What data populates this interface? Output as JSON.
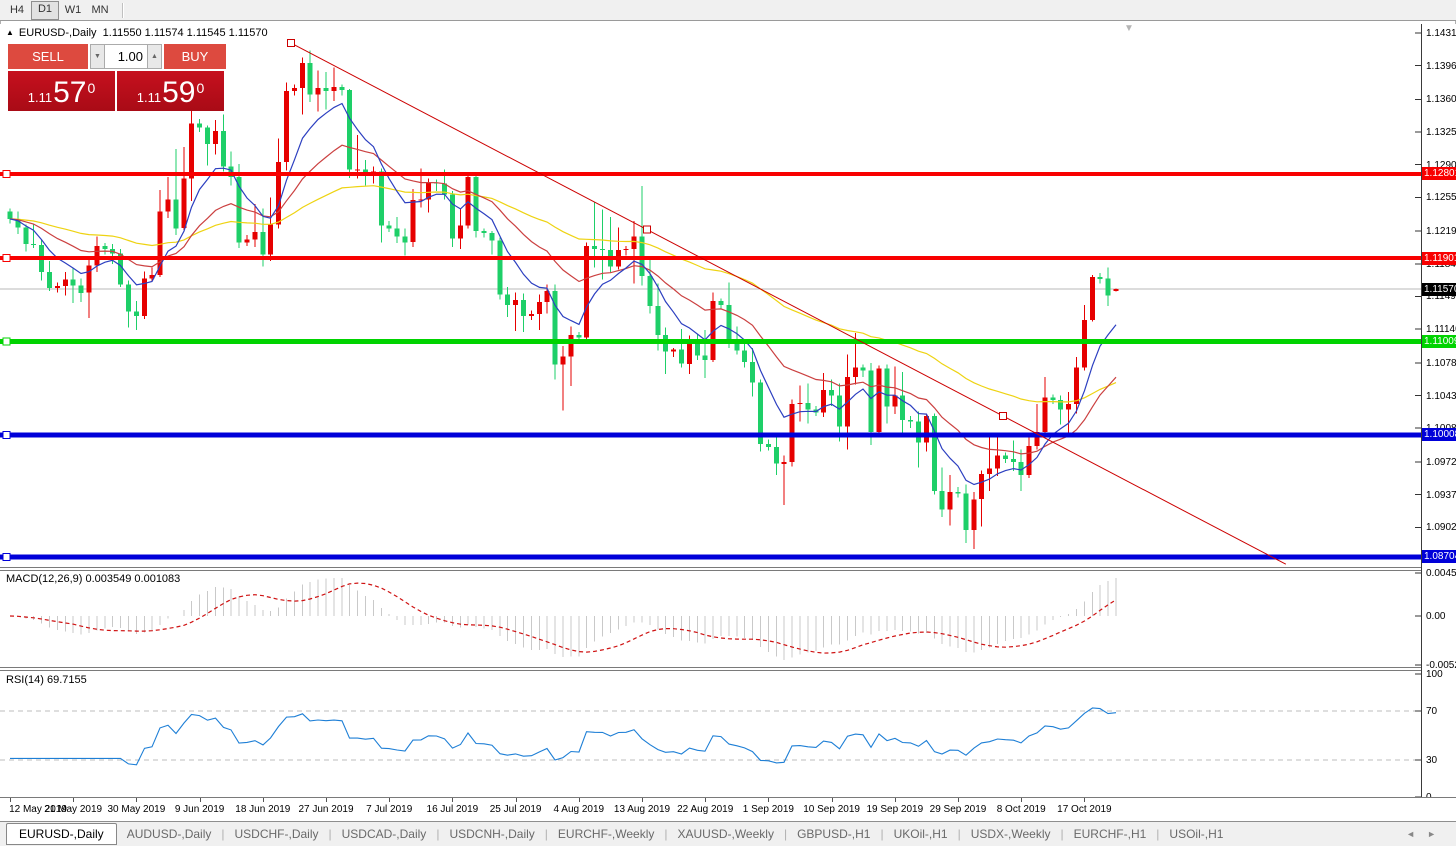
{
  "toolbar": {
    "timeframes": [
      {
        "label": "H4",
        "active": false
      },
      {
        "label": "D1",
        "active": true
      },
      {
        "label": "W1",
        "active": false
      },
      {
        "label": "MN",
        "active": false
      }
    ]
  },
  "chart": {
    "title_symbol": "EURUSD-,Daily",
    "title_ohlc": "1.11550 1.11574 1.11545 1.11570",
    "trade_panel": {
      "sell_label": "SELL",
      "buy_label": "BUY",
      "volume": "1.00",
      "bid_prefix": "1.11",
      "bid_big": "57",
      "bid_sup": "0",
      "ask_prefix": "1.11",
      "ask_big": "59",
      "ask_sup": "0"
    }
  },
  "chart_data": {
    "type": "candlestick",
    "symbol": "EURUSD",
    "timeframe": "Daily",
    "price_axis_range": [
      1.08595,
      1.14406
    ],
    "grid": false,
    "colors": {
      "bull": "#e60000",
      "bear": "#1ecf68",
      "ma_fast": "#2c3fc0",
      "ma_mid": "#cb4040",
      "ma_slow": "#eed312",
      "trendline": "#cc0000",
      "current_line": "#b8b8b8"
    },
    "y_ticks": [
      "1.14310",
      "1.13960",
      "1.13600",
      "1.13250",
      "1.12900",
      "1.12550",
      "1.12190",
      "1.11840",
      "1.11490",
      "1.11140",
      "1.10780",
      "1.10430",
      "1.10080",
      "1.09720",
      "1.09370",
      "1.09020"
    ],
    "current_price": {
      "label": "1.11570",
      "price": 1.1157
    },
    "horizontal_levels": [
      {
        "price": 1.12801,
        "label": "1.12801",
        "color": "#f80000",
        "thickness": 4
      },
      {
        "price": 1.11901,
        "label": "1.11901",
        "color": "#f80000",
        "thickness": 4
      },
      {
        "price": 1.11009,
        "label": "1.11009",
        "color": "#00d300",
        "thickness": 5
      },
      {
        "price": 1.10008,
        "label": "1.10008",
        "color": "#0000d9",
        "thickness": 5
      },
      {
        "price": 1.08704,
        "label": "1.08704",
        "color": "#0000d9",
        "thickness": 5
      }
    ],
    "trendline": {
      "start": {
        "bar": 35.6,
        "price": 1.142
      },
      "end": {
        "bar": 125.7,
        "price": 1.1021
      },
      "ray_end_bar": 161.5,
      "color": "#cc0000"
    },
    "moving_averages": [
      {
        "period": 8,
        "color": "#2c3fc0"
      },
      {
        "period": 21,
        "color": "#cb4040"
      },
      {
        "period": 55,
        "color": "#eed312"
      }
    ],
    "indicators": {
      "macd": {
        "label": "MACD(12,26,9) 0.003549 0.001083",
        "params": [
          12,
          26,
          9
        ],
        "value": 0.003549,
        "signal_value": 0.001083,
        "histogram_color": "#c9c9c9",
        "signal_color": "#cf1212",
        "axis_ticks": [
          {
            "label": "0.004536",
            "value": 0.004536
          },
          {
            "label": "0.00",
            "value": 0
          },
          {
            "label": "-0.005206",
            "value": -0.005206
          }
        ]
      },
      "rsi": {
        "label": "RSI(14) 69.7155",
        "period": 14,
        "value": 69.7155,
        "levels": [
          70,
          30
        ],
        "line_color": "#1e7fd6",
        "axis_ticks": [
          {
            "label": "100",
            "value": 100
          },
          {
            "label": "70",
            "value": 70
          },
          {
            "label": "30",
            "value": 30
          },
          {
            "label": "0",
            "value": 0
          }
        ]
      }
    },
    "x_labels": [
      {
        "bar": 0,
        "label": "12 May 2019"
      },
      {
        "bar": 8,
        "label": "21 May 2019"
      },
      {
        "bar": 16,
        "label": "30 May 2019"
      },
      {
        "bar": 24,
        "label": "9 Jun 2019"
      },
      {
        "bar": 32,
        "label": "18 Jun 2019"
      },
      {
        "bar": 40,
        "label": "27 Jun 2019"
      },
      {
        "bar": 48,
        "label": "7 Jul 2019"
      },
      {
        "bar": 56,
        "label": "16 Jul 2019"
      },
      {
        "bar": 64,
        "label": "25 Jul 2019"
      },
      {
        "bar": 72,
        "label": "4 Aug 2019"
      },
      {
        "bar": 80,
        "label": "13 Aug 2019"
      },
      {
        "bar": 88,
        "label": "22 Aug 2019"
      },
      {
        "bar": 96,
        "label": "1 Sep 2019"
      },
      {
        "bar": 104,
        "label": "10 Sep 2019"
      },
      {
        "bar": 112,
        "label": "19 Sep 2019"
      },
      {
        "bar": 120,
        "label": "29 Sep 2019"
      },
      {
        "bar": 128,
        "label": "8 Oct 2019"
      },
      {
        "bar": 136,
        "label": "17 Oct 2019"
      }
    ],
    "candles": [
      [
        1.124,
        1.1243,
        1.1227,
        1.1232
      ],
      [
        1.1232,
        1.124,
        1.1216,
        1.1223
      ],
      [
        1.1223,
        1.1226,
        1.1197,
        1.1205
      ],
      [
        1.1205,
        1.1226,
        1.1201,
        1.1204
      ],
      [
        1.1204,
        1.121,
        1.1166,
        1.1175
      ],
      [
        1.1175,
        1.1187,
        1.1155,
        1.1158
      ],
      [
        1.1158,
        1.1164,
        1.1153,
        1.116
      ],
      [
        1.116,
        1.1175,
        1.115,
        1.1167
      ],
      [
        1.1167,
        1.118,
        1.1142,
        1.1161
      ],
      [
        1.1161,
        1.1168,
        1.1143,
        1.1153
      ],
      [
        1.1153,
        1.1188,
        1.1126,
        1.1182
      ],
      [
        1.1182,
        1.1213,
        1.1175,
        1.1203
      ],
      [
        1.1203,
        1.1206,
        1.1194,
        1.12
      ],
      [
        1.12,
        1.1205,
        1.1184,
        1.1195
      ],
      [
        1.1195,
        1.12,
        1.1159,
        1.1162
      ],
      [
        1.1162,
        1.1166,
        1.1116,
        1.1133
      ],
      [
        1.1133,
        1.1144,
        1.1113,
        1.1128
      ],
      [
        1.1128,
        1.1176,
        1.1125,
        1.1168
      ],
      [
        1.1168,
        1.118,
        1.1165,
        1.1172
      ],
      [
        1.1172,
        1.1263,
        1.117,
        1.124
      ],
      [
        1.124,
        1.1277,
        1.1233,
        1.1253
      ],
      [
        1.1253,
        1.1307,
        1.1215,
        1.1222
      ],
      [
        1.1222,
        1.1309,
        1.122,
        1.1275
      ],
      [
        1.1275,
        1.1348,
        1.1251,
        1.1334
      ],
      [
        1.1334,
        1.1339,
        1.1325,
        1.133
      ],
      [
        1.133,
        1.1332,
        1.1289,
        1.1312
      ],
      [
        1.1312,
        1.1338,
        1.1301,
        1.1326
      ],
      [
        1.1326,
        1.1344,
        1.1283,
        1.1288
      ],
      [
        1.1288,
        1.1304,
        1.1268,
        1.1277
      ],
      [
        1.1277,
        1.1291,
        1.1201,
        1.1207
      ],
      [
        1.1207,
        1.1215,
        1.1203,
        1.121
      ],
      [
        1.121,
        1.1248,
        1.1202,
        1.1218
      ],
      [
        1.1218,
        1.1243,
        1.1181,
        1.1194
      ],
      [
        1.1194,
        1.1255,
        1.1187,
        1.1226
      ],
      [
        1.1226,
        1.1318,
        1.1222,
        1.1293
      ],
      [
        1.1293,
        1.1378,
        1.1284,
        1.1369
      ],
      [
        1.1369,
        1.1376,
        1.1364,
        1.1372
      ],
      [
        1.1372,
        1.1405,
        1.1344,
        1.1399
      ],
      [
        1.1399,
        1.1412,
        1.1357,
        1.1365
      ],
      [
        1.1365,
        1.1391,
        1.1347,
        1.1372
      ],
      [
        1.1372,
        1.1389,
        1.1349,
        1.1369
      ],
      [
        1.1369,
        1.1394,
        1.1358,
        1.1373
      ],
      [
        1.1373,
        1.1376,
        1.1364,
        1.137
      ],
      [
        1.137,
        1.1371,
        1.1276,
        1.1285
      ],
      [
        1.1285,
        1.1322,
        1.1275,
        1.1285
      ],
      [
        1.1285,
        1.1295,
        1.1268,
        1.1279
      ],
      [
        1.1279,
        1.1288,
        1.127,
        1.1283
      ],
      [
        1.1283,
        1.1286,
        1.1207,
        1.1225
      ],
      [
        1.1225,
        1.123,
        1.1218,
        1.1222
      ],
      [
        1.1222,
        1.1234,
        1.1206,
        1.1213
      ],
      [
        1.1213,
        1.1222,
        1.1193,
        1.1207
      ],
      [
        1.1207,
        1.1264,
        1.1202,
        1.1252
      ],
      [
        1.1252,
        1.1286,
        1.1244,
        1.1253
      ],
      [
        1.1253,
        1.1275,
        1.1239,
        1.1271
      ],
      [
        1.1271,
        1.1274,
        1.1262,
        1.127
      ],
      [
        1.127,
        1.1285,
        1.1253,
        1.1258
      ],
      [
        1.1258,
        1.1262,
        1.1202,
        1.1211
      ],
      [
        1.1211,
        1.1243,
        1.12,
        1.1225
      ],
      [
        1.1225,
        1.1282,
        1.1222,
        1.1277
      ],
      [
        1.1277,
        1.1282,
        1.1212,
        1.1219
      ],
      [
        1.1219,
        1.1222,
        1.1212,
        1.1217
      ],
      [
        1.1217,
        1.1219,
        1.1194,
        1.1209
      ],
      [
        1.1209,
        1.1212,
        1.1146,
        1.1151
      ],
      [
        1.1151,
        1.1159,
        1.1127,
        1.114
      ],
      [
        1.114,
        1.1153,
        1.1112,
        1.1145
      ],
      [
        1.1145,
        1.1152,
        1.1111,
        1.1128
      ],
      [
        1.1128,
        1.1134,
        1.1124,
        1.113
      ],
      [
        1.113,
        1.1151,
        1.1113,
        1.1143
      ],
      [
        1.1143,
        1.1162,
        1.1131,
        1.1155
      ],
      [
        1.1155,
        1.1162,
        1.106,
        1.1076
      ],
      [
        1.1076,
        1.1096,
        1.1027,
        1.1085
      ],
      [
        1.1085,
        1.1117,
        1.1053,
        1.1108
      ],
      [
        1.1108,
        1.1111,
        1.1101,
        1.1105
      ],
      [
        1.1105,
        1.1207,
        1.1103,
        1.1203
      ],
      [
        1.1203,
        1.125,
        1.118,
        1.12
      ],
      [
        1.12,
        1.1242,
        1.1167,
        1.1199
      ],
      [
        1.1199,
        1.1234,
        1.1174,
        1.1181
      ],
      [
        1.1181,
        1.1223,
        1.1178,
        1.1199
      ],
      [
        1.1199,
        1.1203,
        1.1193,
        1.12
      ],
      [
        1.12,
        1.123,
        1.1163,
        1.1213
      ],
      [
        1.1213,
        1.1267,
        1.1161,
        1.1171
      ],
      [
        1.1171,
        1.1191,
        1.1131,
        1.1139
      ],
      [
        1.1139,
        1.1163,
        1.1091,
        1.1108
      ],
      [
        1.1108,
        1.1116,
        1.1066,
        1.109
      ],
      [
        1.109,
        1.1094,
        1.1084,
        1.1092
      ],
      [
        1.1092,
        1.1114,
        1.1073,
        1.1077
      ],
      [
        1.1077,
        1.1107,
        1.1066,
        1.1099
      ],
      [
        1.1099,
        1.1109,
        1.1081,
        1.1086
      ],
      [
        1.1086,
        1.1113,
        1.1062,
        1.1081
      ],
      [
        1.1081,
        1.1153,
        1.1079,
        1.1144
      ],
      [
        1.1144,
        1.1147,
        1.1136,
        1.114
      ],
      [
        1.114,
        1.1164,
        1.1094,
        1.1101
      ],
      [
        1.1101,
        1.1117,
        1.1087,
        1.1091
      ],
      [
        1.1091,
        1.1098,
        1.1073,
        1.1079
      ],
      [
        1.1079,
        1.1094,
        1.1042,
        1.1057
      ],
      [
        1.1057,
        1.106,
        1.0983,
        1.0991
      ],
      [
        1.0991,
        1.0996,
        1.0984,
        1.0988
      ],
      [
        1.0988,
        1.0998,
        1.0958,
        1.097
      ],
      [
        1.097,
        1.0979,
        1.0926,
        1.0972
      ],
      [
        1.0972,
        1.1039,
        1.0967,
        1.1034
      ],
      [
        1.1034,
        1.1054,
        1.1015,
        1.1035
      ],
      [
        1.1035,
        1.1056,
        1.1013,
        1.1028
      ],
      [
        1.1028,
        1.1032,
        1.1021,
        1.1025
      ],
      [
        1.1025,
        1.1067,
        1.102,
        1.1049
      ],
      [
        1.1049,
        1.106,
        1.1032,
        1.1043
      ],
      [
        1.1043,
        1.1056,
        1.0994,
        1.101
      ],
      [
        1.101,
        1.1087,
        1.0985,
        1.1063
      ],
      [
        1.1063,
        1.111,
        1.1055,
        1.1073
      ],
      [
        1.1073,
        1.1076,
        1.1063,
        1.107
      ],
      [
        1.107,
        1.1078,
        1.099,
        1.1004
      ],
      [
        1.1004,
        1.1075,
        1.0998,
        1.1072
      ],
      [
        1.1072,
        1.1076,
        1.1013,
        1.1031
      ],
      [
        1.1031,
        1.1074,
        1.1023,
        1.1043
      ],
      [
        1.1043,
        1.1068,
        1.0999,
        1.1017
      ],
      [
        1.1017,
        1.1021,
        1.1008,
        1.1015
      ],
      [
        1.1015,
        1.1026,
        1.0966,
        1.0993
      ],
      [
        1.0993,
        1.1024,
        1.0983,
        1.1021
      ],
      [
        1.1021,
        1.1024,
        1.0937,
        1.0941
      ],
      [
        1.0941,
        1.0966,
        1.0913,
        1.0921
      ],
      [
        1.0921,
        1.0958,
        1.0904,
        1.094
      ],
      [
        1.094,
        1.0945,
        1.0934,
        1.0938
      ],
      [
        1.0938,
        1.0948,
        1.0885,
        1.0899
      ],
      [
        1.0899,
        1.094,
        1.0879,
        1.0932
      ],
      [
        1.0932,
        1.0963,
        1.0903,
        1.0959
      ],
      [
        1.0959,
        1.0999,
        1.0941,
        1.0965
      ],
      [
        1.0965,
        1.0998,
        1.0957,
        1.0979
      ],
      [
        1.0979,
        1.0982,
        1.0971,
        1.0975
      ],
      [
        1.0975,
        1.0995,
        1.0962,
        1.0972
      ],
      [
        1.0972,
        1.0985,
        1.0941,
        1.0958
      ],
      [
        1.0958,
        1.0999,
        1.0955,
        1.0989
      ],
      [
        1.0989,
        1.1034,
        1.0985,
        1.1004
      ],
      [
        1.1004,
        1.1063,
        1.1001,
        1.1041
      ],
      [
        1.1041,
        1.1044,
        1.1034,
        1.1038
      ],
      [
        1.1038,
        1.1043,
        1.1012,
        1.1028
      ],
      [
        1.1028,
        1.1047,
        1.1003,
        1.1034
      ],
      [
        1.1034,
        1.1084,
        1.1024,
        1.1073
      ],
      [
        1.1073,
        1.114,
        1.107,
        1.1124
      ],
      [
        1.1124,
        1.1172,
        1.1122,
        1.117
      ],
      [
        1.117,
        1.1174,
        1.1163,
        1.1168
      ],
      [
        1.1168,
        1.118,
        1.1139,
        1.115
      ],
      [
        1.1155,
        1.11574,
        1.11545,
        1.1157
      ]
    ]
  },
  "tabs": {
    "items": [
      {
        "label": "EURUSD-,Daily",
        "active": true
      },
      {
        "label": "AUDUSD-,Daily",
        "active": false
      },
      {
        "label": "USDCHF-,Daily",
        "active": false
      },
      {
        "label": "USDCAD-,Daily",
        "active": false
      },
      {
        "label": "USDCNH-,Daily",
        "active": false
      },
      {
        "label": "EURCHF-,Weekly",
        "active": false
      },
      {
        "label": "XAUUSD-,Weekly",
        "active": false
      },
      {
        "label": "GBPUSD-,H1",
        "active": false
      },
      {
        "label": "UKOil-,H1",
        "active": false
      },
      {
        "label": "USDX-,Weekly",
        "active": false
      },
      {
        "label": "EURCHF-,H1",
        "active": false
      },
      {
        "label": "USOil-,H1",
        "active": false
      }
    ],
    "scroll_left_icon": "◄",
    "scroll_right_icon": "►"
  }
}
